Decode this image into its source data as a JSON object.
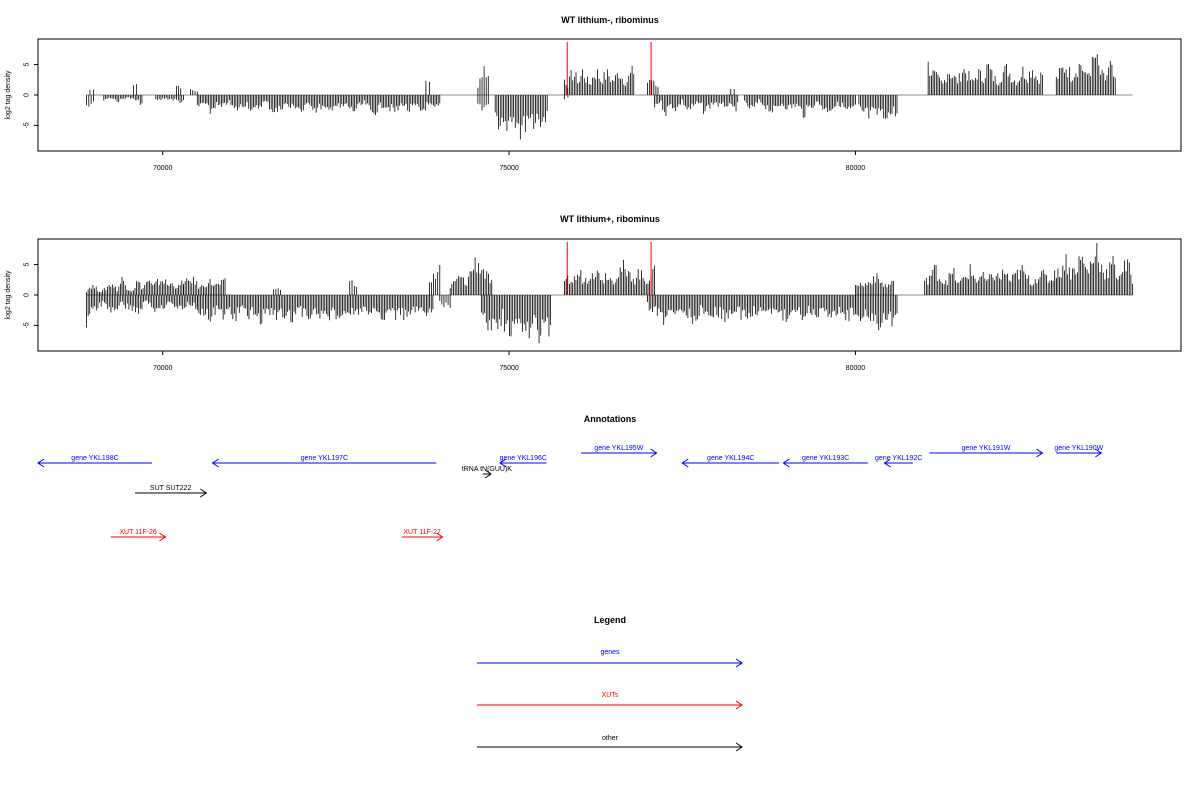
{
  "chart_data": [
    {
      "type": "bar",
      "title": "WT lithium-, ribominus",
      "ylabel": "log2 tag density",
      "xlabel": "",
      "xlim": [
        68200,
        84700
      ],
      "ylim": [
        -9.2,
        9.2
      ],
      "xticks": [
        70000,
        75000,
        80000
      ],
      "xtick_labels": [
        "70000",
        "75000",
        "80000"
      ],
      "yticks": [
        -5,
        0,
        5
      ],
      "ytick_labels": [
        "-5",
        "0",
        "5"
      ],
      "baseline": {
        "from": 68900,
        "to": 84000,
        "value": 0
      },
      "series": [
        {
          "strand": "plus",
          "color": "#000000",
          "regions": [
            {
              "start": 68950,
              "end": 69000,
              "values": [
                1
              ]
            },
            {
              "start": 69580,
              "end": 69620,
              "values": [
                2.6
              ]
            },
            {
              "start": 70200,
              "end": 70260,
              "values": [
                1.8
              ]
            },
            {
              "start": 70400,
              "end": 70500,
              "values": [
                0.9,
                0.8
              ]
            },
            {
              "start": 73800,
              "end": 73850,
              "values": [
                2.3
              ]
            },
            {
              "start": 74550,
              "end": 74700,
              "values": [
                2,
                4,
                5.2,
                3.5
              ]
            },
            {
              "start": 75800,
              "end": 76800,
              "values": [
                3,
                2,
                4,
                3.5,
                2.5,
                4.5,
                3,
                2,
                3.8,
                4.2,
                2.8,
                3.5,
                4,
                2.6,
                3.2,
                4.4,
                3,
                2.4,
                3.8,
                4.6
              ]
            },
            {
              "start": 77000,
              "end": 77150,
              "values": [
                2.5,
                3.2,
                2,
                1.6
              ]
            },
            {
              "start": 78200,
              "end": 78250,
              "values": [
                1.4
              ]
            },
            {
              "start": 81050,
              "end": 82700,
              "values": [
                5.5,
                4,
                3,
                2,
                4.8,
                3.5,
                2.6,
                5,
                3.8,
                2.2,
                4.4,
                3,
                5.6,
                3.4,
                2.5,
                4.2,
                5,
                3,
                2.6,
                4.6,
                3.6,
                5.2,
                3,
                4
              ]
            },
            {
              "start": 82900,
              "end": 83750,
              "values": [
                3,
                4.5,
                5.5,
                3.6,
                4.8,
                6,
                3.4,
                5,
                7.2,
                4,
                3,
                5.5,
                2.5
              ]
            }
          ]
        },
        {
          "strand": "minus",
          "color": "#000000",
          "regions": [
            {
              "start": 68900,
              "end": 69000,
              "values": [
                -1.8
              ]
            },
            {
              "start": 69150,
              "end": 69700,
              "values": [
                -0.8,
                -0.5,
                -1.2,
                -0.4,
                -0.9,
                -1.6
              ]
            },
            {
              "start": 69900,
              "end": 70300,
              "values": [
                -1.2,
                -0.6,
                -0.9,
                -1.4
              ]
            },
            {
              "start": 70500,
              "end": 74000,
              "values": [
                -2.5,
                -1.4,
                -3.2,
                -1.8,
                -2.6,
                -1.1,
                -2.9,
                -2.2,
                -1.5,
                -3.4,
                -2.0,
                -1.2,
                -2.7,
                -3.1,
                -1.6,
                -2.4,
                -2.0,
                -3.3,
                -1.3,
                -2.8,
                -2.1,
                -3.5,
                -1.7,
                -2.5,
                -1.9,
                -3.0,
                -2.3,
                -1.4,
                -3.6,
                -2.6,
                -1.8,
                -2.4,
                -3.2,
                -1.5,
                -2.9,
                -2.1,
                -3.1,
                -1.9,
                -2.7,
                -2.2
              ]
            },
            {
              "start": 74550,
              "end": 74700,
              "values": [
                -1.8,
                -2.6,
                -1.4
              ]
            },
            {
              "start": 74800,
              "end": 75550,
              "values": [
                -3,
                -5.5,
                -6.2,
                -4.2,
                -7,
                -5,
                -3.8,
                -6.8,
                -5.6,
                -7.8,
                -4.5,
                -6.2,
                -5.2,
                -3.5,
                -7.2,
                -6,
                -4.8,
                -5.8,
                -6.6,
                -3.2
              ]
            },
            {
              "start": 75800,
              "end": 75850,
              "values": [
                -0.8
              ]
            },
            {
              "start": 77100,
              "end": 78300,
              "values": [
                -2,
                -1.2,
                -3.2,
                -1.8,
                -2.6,
                -1.1,
                -2.8,
                -2.2,
                -1.5,
                -3,
                -2,
                -1.3,
                -2.4,
                -1.7,
                -2.9,
                -2.1
              ]
            },
            {
              "start": 78400,
              "end": 80000,
              "values": [
                -1.6,
                -2.8,
                -1.2,
                -2.2,
                -3.2,
                -1.5,
                -2.5,
                -1.8,
                -3.5,
                -2,
                -1.4,
                -2.9,
                -2.2,
                -1.7,
                -3.1,
                -2.4
              ]
            },
            {
              "start": 80050,
              "end": 80600,
              "values": [
                -2.4,
                -3.6,
                -2.8,
                -4.2,
                -3.1,
                -3.9,
                -2.6,
                -4.4,
                -3.3,
                -3.8,
                -2.9,
                -3.5
              ]
            }
          ]
        }
      ],
      "highlight_lines": [
        {
          "x": 75840,
          "y": 8.7,
          "color": "#ff0000"
        },
        {
          "x": 77050,
          "y": 8.7,
          "color": "#ff0000"
        }
      ]
    },
    {
      "type": "bar",
      "title": "WT lithium+, ribominus",
      "ylabel": "log2 tag density",
      "xlabel": "",
      "xlim": [
        68200,
        84700
      ],
      "ylim": [
        -9.2,
        9.2
      ],
      "xticks": [
        70000,
        75000,
        80000
      ],
      "xtick_labels": [
        "70000",
        "75000",
        "80000"
      ],
      "yticks": [
        -5,
        0,
        5
      ],
      "ytick_labels": [
        "-5",
        "0",
        "5"
      ],
      "baseline": {
        "from": 68900,
        "to": 84000,
        "value": 0
      },
      "series": [
        {
          "strand": "plus",
          "color": "#000000",
          "regions": [
            {
              "start": 68900,
              "end": 70300,
              "values": [
                0.8,
                1.8,
                1.2,
                0.6,
                1.5,
                2.2,
                1,
                3,
                1.4,
                0.8,
                2.6,
                1.2,
                2.8,
                1.6,
                2.4,
                3,
                1.8,
                2.2,
                1.4,
                2.6
              ]
            },
            {
              "start": 70300,
              "end": 70900,
              "values": [
                2,
                3,
                1.4,
                2.6,
                1.8,
                2.4
              ]
            },
            {
              "start": 71600,
              "end": 71700,
              "values": [
                1.2
              ]
            },
            {
              "start": 72700,
              "end": 72800,
              "values": [
                2.4
              ]
            },
            {
              "start": 73850,
              "end": 74000,
              "values": [
                2,
                5.2
              ]
            },
            {
              "start": 74150,
              "end": 74750,
              "values": [
                1.5,
                2.5,
                3.5,
                2,
                4.5,
                6.4,
                5.2,
                3.6,
                2.2
              ]
            },
            {
              "start": 75800,
              "end": 77100,
              "values": [
                2,
                3,
                2.5,
                3.5,
                4,
                2.8,
                3.2,
                5.5,
                3.8,
                4.2,
                3,
                4.5,
                2.6,
                3.6,
                4.8,
                5.2,
                3.4,
                4,
                3,
                4.4,
                3.2,
                2.8,
                3.8,
                4.2
              ]
            },
            {
              "start": 80000,
              "end": 80550,
              "values": [
                2.6,
                1.8,
                2.2,
                3.6,
                2.4,
                1.6,
                2.8
              ]
            },
            {
              "start": 81000,
              "end": 82900,
              "values": [
                2.2,
                3.8,
                4.8,
                2.6,
                3,
                4.2,
                2,
                3.4,
                4.6,
                2.8,
                3.6,
                2.4,
                4,
                3.2,
                4.4,
                2.6,
                3.8,
                4.6,
                3,
                2.4,
                4.2,
                3.4,
                2.8,
                4.8
              ]
            },
            {
              "start": 82900,
              "end": 84000,
              "values": [
                3.5,
                5,
                6.5,
                4,
                5.5,
                7,
                4.5,
                6,
                8.8,
                5,
                4,
                6.2,
                3.6,
                4.8,
                5.6,
                3.2
              ]
            }
          ]
        },
        {
          "strand": "minus",
          "color": "#000000",
          "regions": [
            {
              "start": 68900,
              "end": 70500,
              "values": [
                -5,
                -2.5,
                -1.5,
                -3,
                -1.8,
                -2.2,
                -3.2,
                -1.2,
                -2.6,
                -2,
                -1.5,
                -2.8,
                -1.4,
                -2.4
              ]
            },
            {
              "start": 70500,
              "end": 73900,
              "values": [
                -2.5,
                -3.4,
                -4.6,
                -2.8,
                -3.6,
                -3,
                -4.2,
                -2.6,
                -3.8,
                -3.2,
                -4.4,
                -2.9,
                -3.5,
                -4,
                -3.1,
                -4.5,
                -2.7,
                -3.7,
                -3.3,
                -4.1,
                -2.8,
                -3.9,
                -3.4,
                -4.3,
                -3,
                -3.6,
                -2.6,
                -3.8,
                -3.2,
                -4.6,
                -2.9,
                -3.5,
                -4,
                -3.1,
                -2.8,
                -3.7,
                -3.3,
                -2.5
              ]
            },
            {
              "start": 74000,
              "end": 74150,
              "values": [
                -1.6,
                -2.4
              ]
            },
            {
              "start": 74600,
              "end": 75600,
              "values": [
                -2.8,
                -4.5,
                -6,
                -5,
                -7,
                -5.6,
                -4,
                -7.8,
                -6.2,
                -8.6,
                -5.5,
                -6.8,
                -4.8,
                -7.2,
                -6,
                -5.2,
                -7.6,
                -4.2,
                -6.4,
                -5.8
              ]
            },
            {
              "start": 77000,
              "end": 80000,
              "values": [
                -2,
                -3.2,
                -4.5,
                -2.6,
                -3.8,
                -3,
                -4.4,
                -2.8,
                -3.6,
                -3.2,
                -4,
                -2.9,
                -3.5,
                -4.2,
                -3.1,
                -2.7,
                -3.9,
                -3.3,
                -4.1,
                -2.8,
                -3.7,
                -3,
                -3.4,
                -2.6,
                -3.8,
                -3.2,
                -4,
                -2.9
              ]
            },
            {
              "start": 80000,
              "end": 80600,
              "values": [
                -3,
                -4.5,
                -3.6,
                -5.4,
                -4,
                -6,
                -3.8,
                -5,
                -4.6,
                -3.4
              ]
            }
          ]
        }
      ],
      "highlight_lines": [
        {
          "x": 75840,
          "y": 8.7,
          "color": "#ff0000"
        },
        {
          "x": 77050,
          "y": 8.7,
          "color": "#ff0000"
        }
      ]
    }
  ],
  "annotations": {
    "title": "Annotations",
    "features": [
      {
        "label": "gene YKL198C",
        "color": "#0000ff",
        "start": 69845,
        "end": 68200,
        "row": "gene-low"
      },
      {
        "label": "gene YKL197C",
        "color": "#0000ff",
        "start": 73950,
        "end": 70720,
        "row": "gene-low"
      },
      {
        "label": "gene YKL196C",
        "color": "#0000ff",
        "start": 75540,
        "end": 74870,
        "row": "gene-low"
      },
      {
        "label": "gene YKL195W",
        "color": "#0000ff",
        "start": 76040,
        "end": 77130,
        "row": "gene-high"
      },
      {
        "label": "gene YKL194C",
        "color": "#0000ff",
        "start": 78900,
        "end": 77500,
        "row": "gene-low"
      },
      {
        "label": "gene YKL193C",
        "color": "#0000ff",
        "start": 80180,
        "end": 78960,
        "row": "gene-low"
      },
      {
        "label": "gene YKL192C",
        "color": "#0000ff",
        "start": 80830,
        "end": 80420,
        "row": "gene-low"
      },
      {
        "label": "gene YKL191W",
        "color": "#0000ff",
        "start": 81070,
        "end": 82700,
        "row": "gene-high"
      },
      {
        "label": "gene YKL190W",
        "color": "#0000ff",
        "start": 82900,
        "end": 83550,
        "row": "gene-high"
      },
      {
        "label": "tRNA tN(GUU)K",
        "color": "#000000",
        "start": 74620,
        "end": 74740,
        "row": "trna"
      },
      {
        "label": "SUT SUT222",
        "color": "#000000",
        "start": 69600,
        "end": 70630,
        "row": "sut"
      },
      {
        "label": "XUT 11F-26",
        "color": "#ff0000",
        "start": 69250,
        "end": 70040,
        "row": "xut"
      },
      {
        "label": "XUT 11F-27",
        "color": "#ff0000",
        "start": 73450,
        "end": 74040,
        "row": "xut"
      }
    ]
  },
  "legend": {
    "title": "Legend",
    "items": [
      {
        "label": "genes",
        "color": "#0000ff"
      },
      {
        "label": "XUTs",
        "color": "#ff0000"
      },
      {
        "label": "other",
        "color": "#000000"
      }
    ]
  }
}
